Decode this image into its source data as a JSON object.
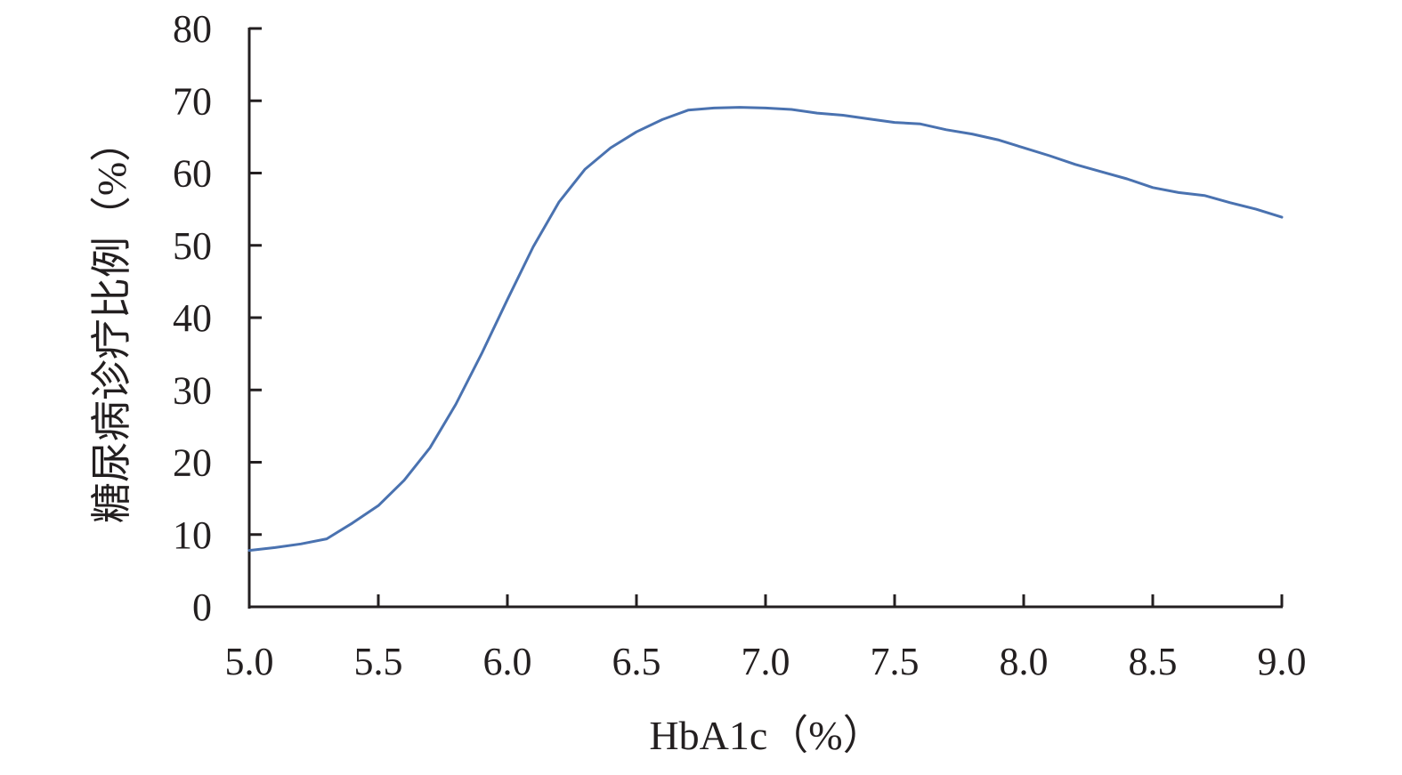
{
  "chart_data": {
    "type": "line",
    "xlabel": "HbA1c（%）",
    "ylabel": "糖尿病诊疗比例（%）",
    "xlim": [
      5.0,
      9.0
    ],
    "ylim": [
      0,
      80
    ],
    "x_ticks": [
      "5.0",
      "5.5",
      "6.0",
      "6.5",
      "7.0",
      "7.5",
      "8.0",
      "8.5",
      "9.0"
    ],
    "y_ticks": [
      "0",
      "10",
      "20",
      "30",
      "40",
      "50",
      "60",
      "70",
      "80"
    ],
    "grid": false,
    "legend": "none",
    "series": [
      {
        "color": "#4a72b0",
        "x": [
          5.0,
          5.1,
          5.2,
          5.3,
          5.4,
          5.5,
          5.6,
          5.7,
          5.8,
          5.9,
          6.0,
          6.1,
          6.2,
          6.3,
          6.4,
          6.5,
          6.6,
          6.7,
          6.8,
          6.9,
          7.0,
          7.1,
          7.2,
          7.3,
          7.4,
          7.5,
          7.6,
          7.7,
          7.8,
          7.9,
          8.0,
          8.1,
          8.2,
          8.3,
          8.4,
          8.5,
          8.6,
          8.7,
          8.8,
          8.9,
          9.0
        ],
        "y": [
          7.8,
          8.2,
          8.7,
          9.4,
          11.6,
          14.0,
          17.5,
          22.0,
          28.0,
          35.0,
          42.5,
          49.8,
          56.0,
          60.5,
          63.5,
          65.7,
          67.4,
          68.7,
          69.0,
          69.1,
          69.0,
          68.8,
          68.3,
          68.0,
          67.5,
          67.0,
          66.8,
          66.0,
          65.4,
          64.6,
          63.5,
          62.4,
          61.2,
          60.2,
          59.2,
          58.0,
          57.3,
          56.9,
          55.9,
          55.0,
          53.9
        ]
      }
    ]
  }
}
